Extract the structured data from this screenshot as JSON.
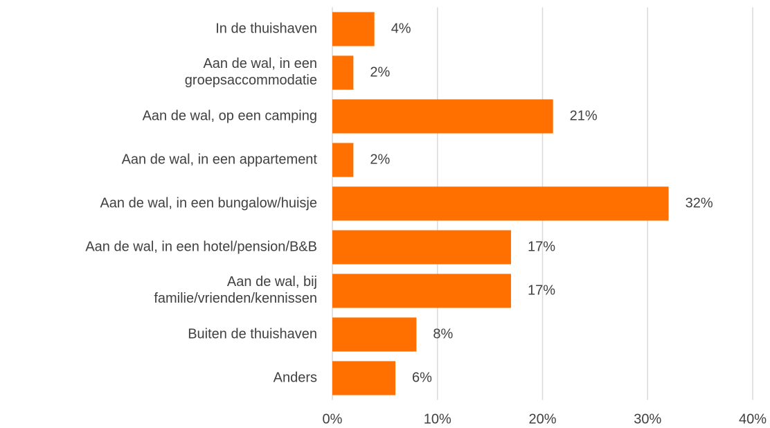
{
  "chart_data": {
    "type": "bar",
    "orientation": "horizontal",
    "categories": [
      "In de thuishaven",
      "Aan de wal, in een\ngroepsaccommodatie",
      "Aan de wal, op een camping",
      "Aan de wal, in een appartement",
      "Aan de wal, in een bungalow/huisje",
      "Aan de wal, in een hotel/pension/B&B",
      "Aan de wal, bij\nfamilie/vrienden/kennissen",
      "Buiten de thuishaven",
      "Anders"
    ],
    "values": [
      4,
      2,
      21,
      2,
      32,
      17,
      17,
      8,
      6
    ],
    "value_labels": [
      "4%",
      "2%",
      "21%",
      "2%",
      "32%",
      "17%",
      "17%",
      "8%",
      "6%"
    ],
    "color": "#ff7000",
    "xlim": [
      0,
      40
    ],
    "xticks": [
      {
        "value": 0,
        "label": "0%"
      },
      {
        "value": 10,
        "label": "10%"
      },
      {
        "value": 20,
        "label": "20%"
      },
      {
        "value": 30,
        "label": "30%"
      },
      {
        "value": 40,
        "label": "40%"
      }
    ],
    "grid": true
  }
}
